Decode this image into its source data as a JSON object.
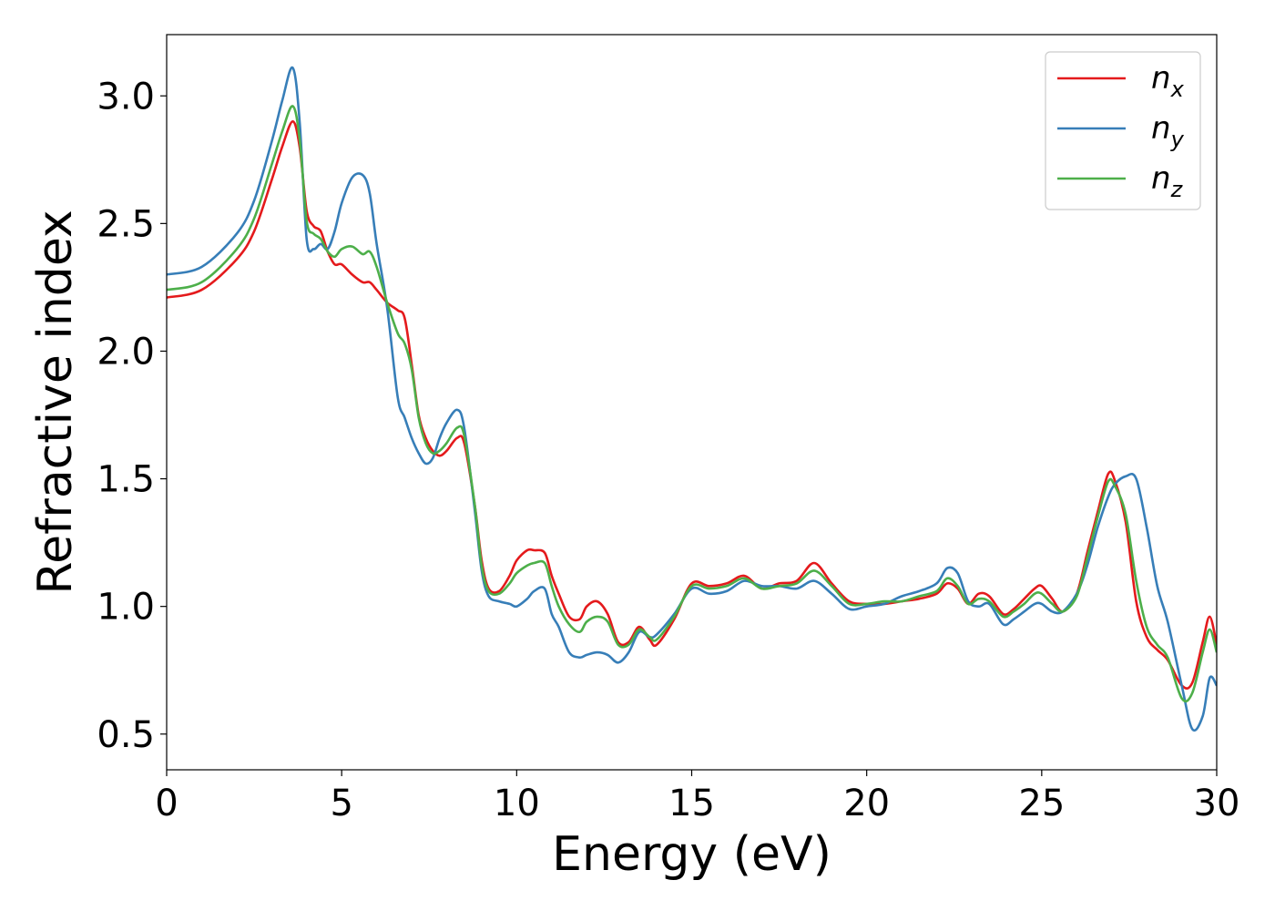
{
  "chart_data": {
    "type": "line",
    "xlabel": "Energy (eV)",
    "ylabel": "Refractive index",
    "xlim": [
      0,
      30
    ],
    "ylim": [
      0.36,
      3.24
    ],
    "xticks": [
      0,
      5,
      10,
      15,
      20,
      25,
      30
    ],
    "xtick_labels": [
      "0",
      "5",
      "10",
      "15",
      "20",
      "25",
      "30"
    ],
    "yticks": [
      0.5,
      1.0,
      1.5,
      2.0,
      2.5,
      3.0
    ],
    "ytick_labels": [
      "0.5",
      "1.0",
      "1.5",
      "2.0",
      "2.5",
      "3.0"
    ],
    "grid": false,
    "legend_position": "top-right",
    "series": [
      {
        "name": "n_x",
        "label_main": "n",
        "label_sub": "x",
        "color": "#e41a1c",
        "x": [
          0,
          1,
          2,
          2.5,
          3,
          3.3,
          3.6,
          3.8,
          4.0,
          4.2,
          4.4,
          4.6,
          4.8,
          5.0,
          5.3,
          5.6,
          5.8,
          6.0,
          6.3,
          6.6,
          6.8,
          7.0,
          7.2,
          7.4,
          7.6,
          7.8,
          8.0,
          8.3,
          8.5,
          8.8,
          9.0,
          9.2,
          9.5,
          9.8,
          10.0,
          10.3,
          10.5,
          10.8,
          11.0,
          11.2,
          11.5,
          11.8,
          12.0,
          12.3,
          12.6,
          12.9,
          13.2,
          13.5,
          13.8,
          14.0,
          14.5,
          15.0,
          15.5,
          16.0,
          16.5,
          17.0,
          17.5,
          18.0,
          18.5,
          19.0,
          19.5,
          20.0,
          20.5,
          21.0,
          21.5,
          22.0,
          22.3,
          22.6,
          22.9,
          23.2,
          23.5,
          23.9,
          24.2,
          24.5,
          24.8,
          25.0,
          25.3,
          25.6,
          26.0,
          26.3,
          26.6,
          26.9,
          27.1,
          27.4,
          27.7,
          28.0,
          28.3,
          28.6,
          29.0,
          29.3,
          29.6,
          29.8,
          30.0
        ],
        "y": [
          2.21,
          2.24,
          2.36,
          2.47,
          2.67,
          2.8,
          2.9,
          2.8,
          2.55,
          2.49,
          2.47,
          2.39,
          2.34,
          2.34,
          2.3,
          2.27,
          2.27,
          2.24,
          2.19,
          2.16,
          2.13,
          1.95,
          1.75,
          1.66,
          1.61,
          1.59,
          1.61,
          1.66,
          1.64,
          1.4,
          1.18,
          1.07,
          1.06,
          1.12,
          1.18,
          1.22,
          1.22,
          1.21,
          1.12,
          1.05,
          0.96,
          0.95,
          1.0,
          1.02,
          0.97,
          0.86,
          0.86,
          0.92,
          0.87,
          0.85,
          0.95,
          1.09,
          1.08,
          1.09,
          1.12,
          1.07,
          1.09,
          1.1,
          1.17,
          1.09,
          1.02,
          1.01,
          1.01,
          1.02,
          1.03,
          1.05,
          1.09,
          1.07,
          1.01,
          1.05,
          1.04,
          0.97,
          0.99,
          1.03,
          1.07,
          1.08,
          1.03,
          0.98,
          1.05,
          1.21,
          1.37,
          1.52,
          1.49,
          1.33,
          1.02,
          0.88,
          0.83,
          0.79,
          0.69,
          0.7,
          0.86,
          0.96,
          0.85
        ]
      },
      {
        "name": "n_y",
        "label_main": "n",
        "label_sub": "y",
        "color": "#377eb8",
        "x": [
          0,
          1,
          2,
          2.5,
          3,
          3.3,
          3.6,
          3.8,
          4.0,
          4.2,
          4.4,
          4.6,
          4.8,
          5.0,
          5.3,
          5.6,
          5.8,
          6.0,
          6.3,
          6.6,
          6.8,
          7.0,
          7.2,
          7.4,
          7.6,
          7.8,
          8.0,
          8.3,
          8.5,
          8.8,
          9.0,
          9.2,
          9.5,
          9.8,
          10.0,
          10.3,
          10.5,
          10.8,
          11.0,
          11.2,
          11.5,
          11.8,
          12.0,
          12.3,
          12.6,
          12.9,
          13.2,
          13.5,
          13.8,
          14.0,
          14.5,
          15.0,
          15.5,
          16.0,
          16.5,
          17.0,
          17.5,
          18.0,
          18.5,
          19.0,
          19.5,
          20.0,
          20.5,
          21.0,
          21.5,
          22.0,
          22.3,
          22.6,
          22.9,
          23.2,
          23.5,
          23.9,
          24.2,
          24.5,
          24.8,
          25.0,
          25.3,
          25.6,
          26.0,
          26.3,
          26.6,
          26.9,
          27.1,
          27.4,
          27.7,
          28.0,
          28.3,
          28.6,
          29.0,
          29.3,
          29.6,
          29.8,
          30.0
        ],
        "y": [
          2.3,
          2.33,
          2.46,
          2.59,
          2.82,
          2.98,
          3.11,
          2.9,
          2.44,
          2.4,
          2.42,
          2.4,
          2.47,
          2.58,
          2.68,
          2.69,
          2.62,
          2.42,
          2.17,
          1.82,
          1.74,
          1.66,
          1.6,
          1.56,
          1.58,
          1.66,
          1.72,
          1.77,
          1.7,
          1.38,
          1.14,
          1.04,
          1.02,
          1.01,
          1.0,
          1.03,
          1.06,
          1.07,
          0.97,
          0.92,
          0.82,
          0.8,
          0.81,
          0.82,
          0.81,
          0.78,
          0.82,
          0.9,
          0.88,
          0.89,
          0.97,
          1.07,
          1.05,
          1.06,
          1.1,
          1.08,
          1.08,
          1.07,
          1.1,
          1.05,
          0.99,
          1.0,
          1.01,
          1.04,
          1.06,
          1.09,
          1.15,
          1.13,
          1.02,
          1.0,
          1.01,
          0.93,
          0.95,
          0.98,
          1.01,
          1.01,
          0.98,
          0.98,
          1.05,
          1.16,
          1.31,
          1.43,
          1.48,
          1.51,
          1.5,
          1.31,
          1.08,
          0.94,
          0.69,
          0.52,
          0.57,
          0.72,
          0.69
        ]
      },
      {
        "name": "n_z",
        "label_main": "n",
        "label_sub": "z",
        "color": "#4daf4a",
        "x": [
          0,
          1,
          2,
          2.5,
          3,
          3.3,
          3.6,
          3.8,
          4.0,
          4.2,
          4.4,
          4.6,
          4.8,
          5.0,
          5.3,
          5.6,
          5.8,
          6.0,
          6.3,
          6.6,
          6.8,
          7.0,
          7.2,
          7.4,
          7.6,
          7.8,
          8.0,
          8.3,
          8.5,
          8.8,
          9.0,
          9.2,
          9.5,
          9.8,
          10.0,
          10.3,
          10.5,
          10.8,
          11.0,
          11.2,
          11.5,
          11.8,
          12.0,
          12.3,
          12.6,
          12.9,
          13.2,
          13.5,
          13.8,
          14.0,
          14.5,
          15.0,
          15.5,
          16.0,
          16.5,
          17.0,
          17.5,
          18.0,
          18.5,
          19.0,
          19.5,
          20.0,
          20.5,
          21.0,
          21.5,
          22.0,
          22.3,
          22.6,
          22.9,
          23.2,
          23.5,
          23.9,
          24.2,
          24.5,
          24.8,
          25.0,
          25.3,
          25.6,
          26.0,
          26.3,
          26.6,
          26.9,
          27.1,
          27.4,
          27.7,
          28.0,
          28.3,
          28.6,
          29.0,
          29.3,
          29.6,
          29.8,
          30.0
        ],
        "y": [
          2.24,
          2.27,
          2.4,
          2.52,
          2.73,
          2.86,
          2.96,
          2.83,
          2.51,
          2.46,
          2.44,
          2.39,
          2.37,
          2.4,
          2.41,
          2.38,
          2.39,
          2.33,
          2.19,
          2.07,
          2.03,
          1.93,
          1.74,
          1.64,
          1.6,
          1.61,
          1.64,
          1.7,
          1.67,
          1.4,
          1.16,
          1.06,
          1.05,
          1.09,
          1.13,
          1.16,
          1.17,
          1.17,
          1.08,
          1.0,
          0.93,
          0.9,
          0.94,
          0.96,
          0.94,
          0.85,
          0.85,
          0.91,
          0.88,
          0.87,
          0.96,
          1.08,
          1.07,
          1.08,
          1.11,
          1.07,
          1.08,
          1.09,
          1.14,
          1.08,
          1.01,
          1.01,
          1.02,
          1.02,
          1.04,
          1.06,
          1.11,
          1.08,
          1.01,
          1.03,
          1.02,
          0.96,
          0.98,
          1.01,
          1.05,
          1.05,
          1.01,
          0.98,
          1.04,
          1.19,
          1.35,
          1.49,
          1.47,
          1.36,
          1.1,
          0.92,
          0.85,
          0.8,
          0.64,
          0.66,
          0.82,
          0.91,
          0.82
        ]
      }
    ]
  }
}
